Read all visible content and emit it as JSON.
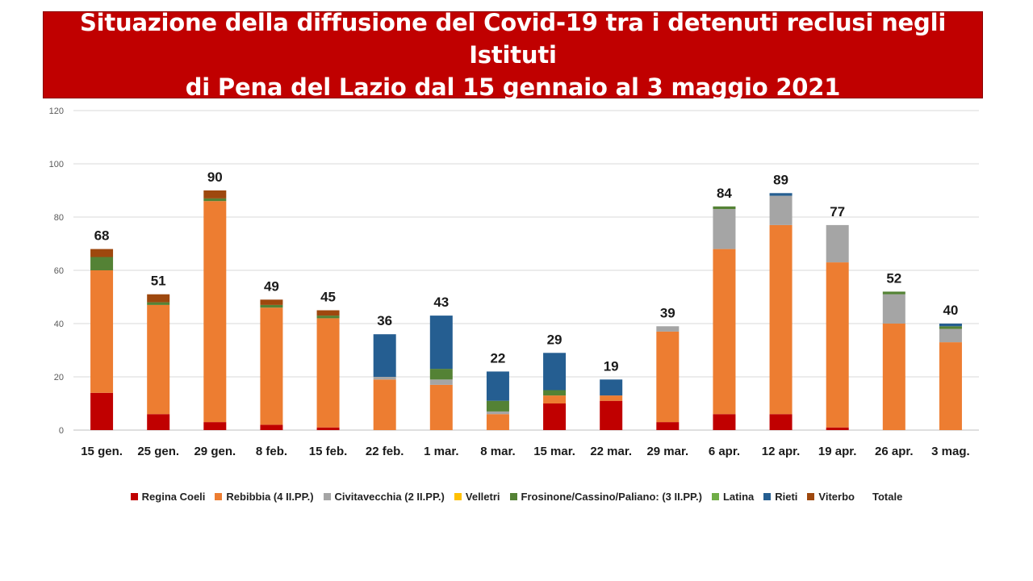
{
  "title": "Situazione della diffusione del Covid-19 tra i detenuti reclusi negli Istituti di Pena del Lazio dal 15 gennaio al 3 maggio 2021",
  "title_lines": [
    "Situazione della diffusione del Covid-19 tra i detenuti reclusi negli Istituti",
    "di Pena del Lazio dal 15 gennaio al 3 maggio 2021"
  ],
  "colors": {
    "banner": "#c00000"
  },
  "chart_data": {
    "type": "bar",
    "stacked": true,
    "categories": [
      "15 gen.",
      "25 gen.",
      "29 gen.",
      "8 feb.",
      "15 feb.",
      "22 feb.",
      "1 mar.",
      "8 mar.",
      "15 mar.",
      "22 mar.",
      "29 mar.",
      "6 apr.",
      "12 apr.",
      "19 apr.",
      "26 apr.",
      "3 mag."
    ],
    "ylim": [
      0,
      120
    ],
    "yticks": [
      0,
      20,
      40,
      60,
      80,
      100,
      120
    ],
    "grid": true,
    "legend_position": "bottom",
    "series": [
      {
        "name": "Regina Coeli",
        "color": "#c00000",
        "values": [
          14,
          6,
          3,
          2,
          1,
          0,
          0,
          0,
          10,
          11,
          3,
          6,
          6,
          1,
          0,
          0
        ]
      },
      {
        "name": "Rebibbia (4 II.PP.)",
        "color": "#ed7d31",
        "values": [
          46,
          41,
          83,
          44,
          41,
          19,
          17,
          6,
          3,
          2,
          34,
          62,
          71,
          62,
          40,
          33
        ]
      },
      {
        "name": "Civitavecchia (2 II.PP.)",
        "color": "#a5a5a5",
        "values": [
          0,
          0,
          0,
          0,
          0,
          1,
          2,
          1,
          0,
          0,
          2,
          15,
          11,
          14,
          11,
          5
        ]
      },
      {
        "name": "Velletri",
        "color": "#ffc000",
        "values": [
          0,
          0,
          0,
          0,
          0,
          0,
          0,
          0,
          0,
          0,
          0,
          0,
          0,
          0,
          0,
          0
        ]
      },
      {
        "name": "Frosinone/Cassino/Paliano: (3 II.PP.)",
        "color": "#548235",
        "values": [
          5,
          1,
          1,
          1,
          1,
          0,
          4,
          4,
          2,
          0,
          0,
          1,
          0,
          0,
          1,
          1
        ]
      },
      {
        "name": "Latina",
        "color": "#70ad47",
        "values": [
          0,
          0,
          0,
          0,
          0,
          0,
          0,
          0,
          0,
          0,
          0,
          0,
          0,
          0,
          0,
          0
        ]
      },
      {
        "name": "Rieti",
        "color": "#255e91",
        "values": [
          0,
          0,
          0,
          0,
          0,
          16,
          20,
          11,
          14,
          6,
          0,
          0,
          1,
          0,
          0,
          1
        ]
      },
      {
        "name": "Viterbo",
        "color": "#9e480e",
        "values": [
          3,
          3,
          3,
          2,
          2,
          0,
          0,
          0,
          0,
          0,
          0,
          0,
          0,
          0,
          0,
          0
        ]
      }
    ],
    "totals_name": "Totale",
    "totals": [
      68,
      51,
      90,
      49,
      45,
      36,
      43,
      22,
      29,
      19,
      39,
      84,
      89,
      77,
      52,
      40
    ]
  }
}
